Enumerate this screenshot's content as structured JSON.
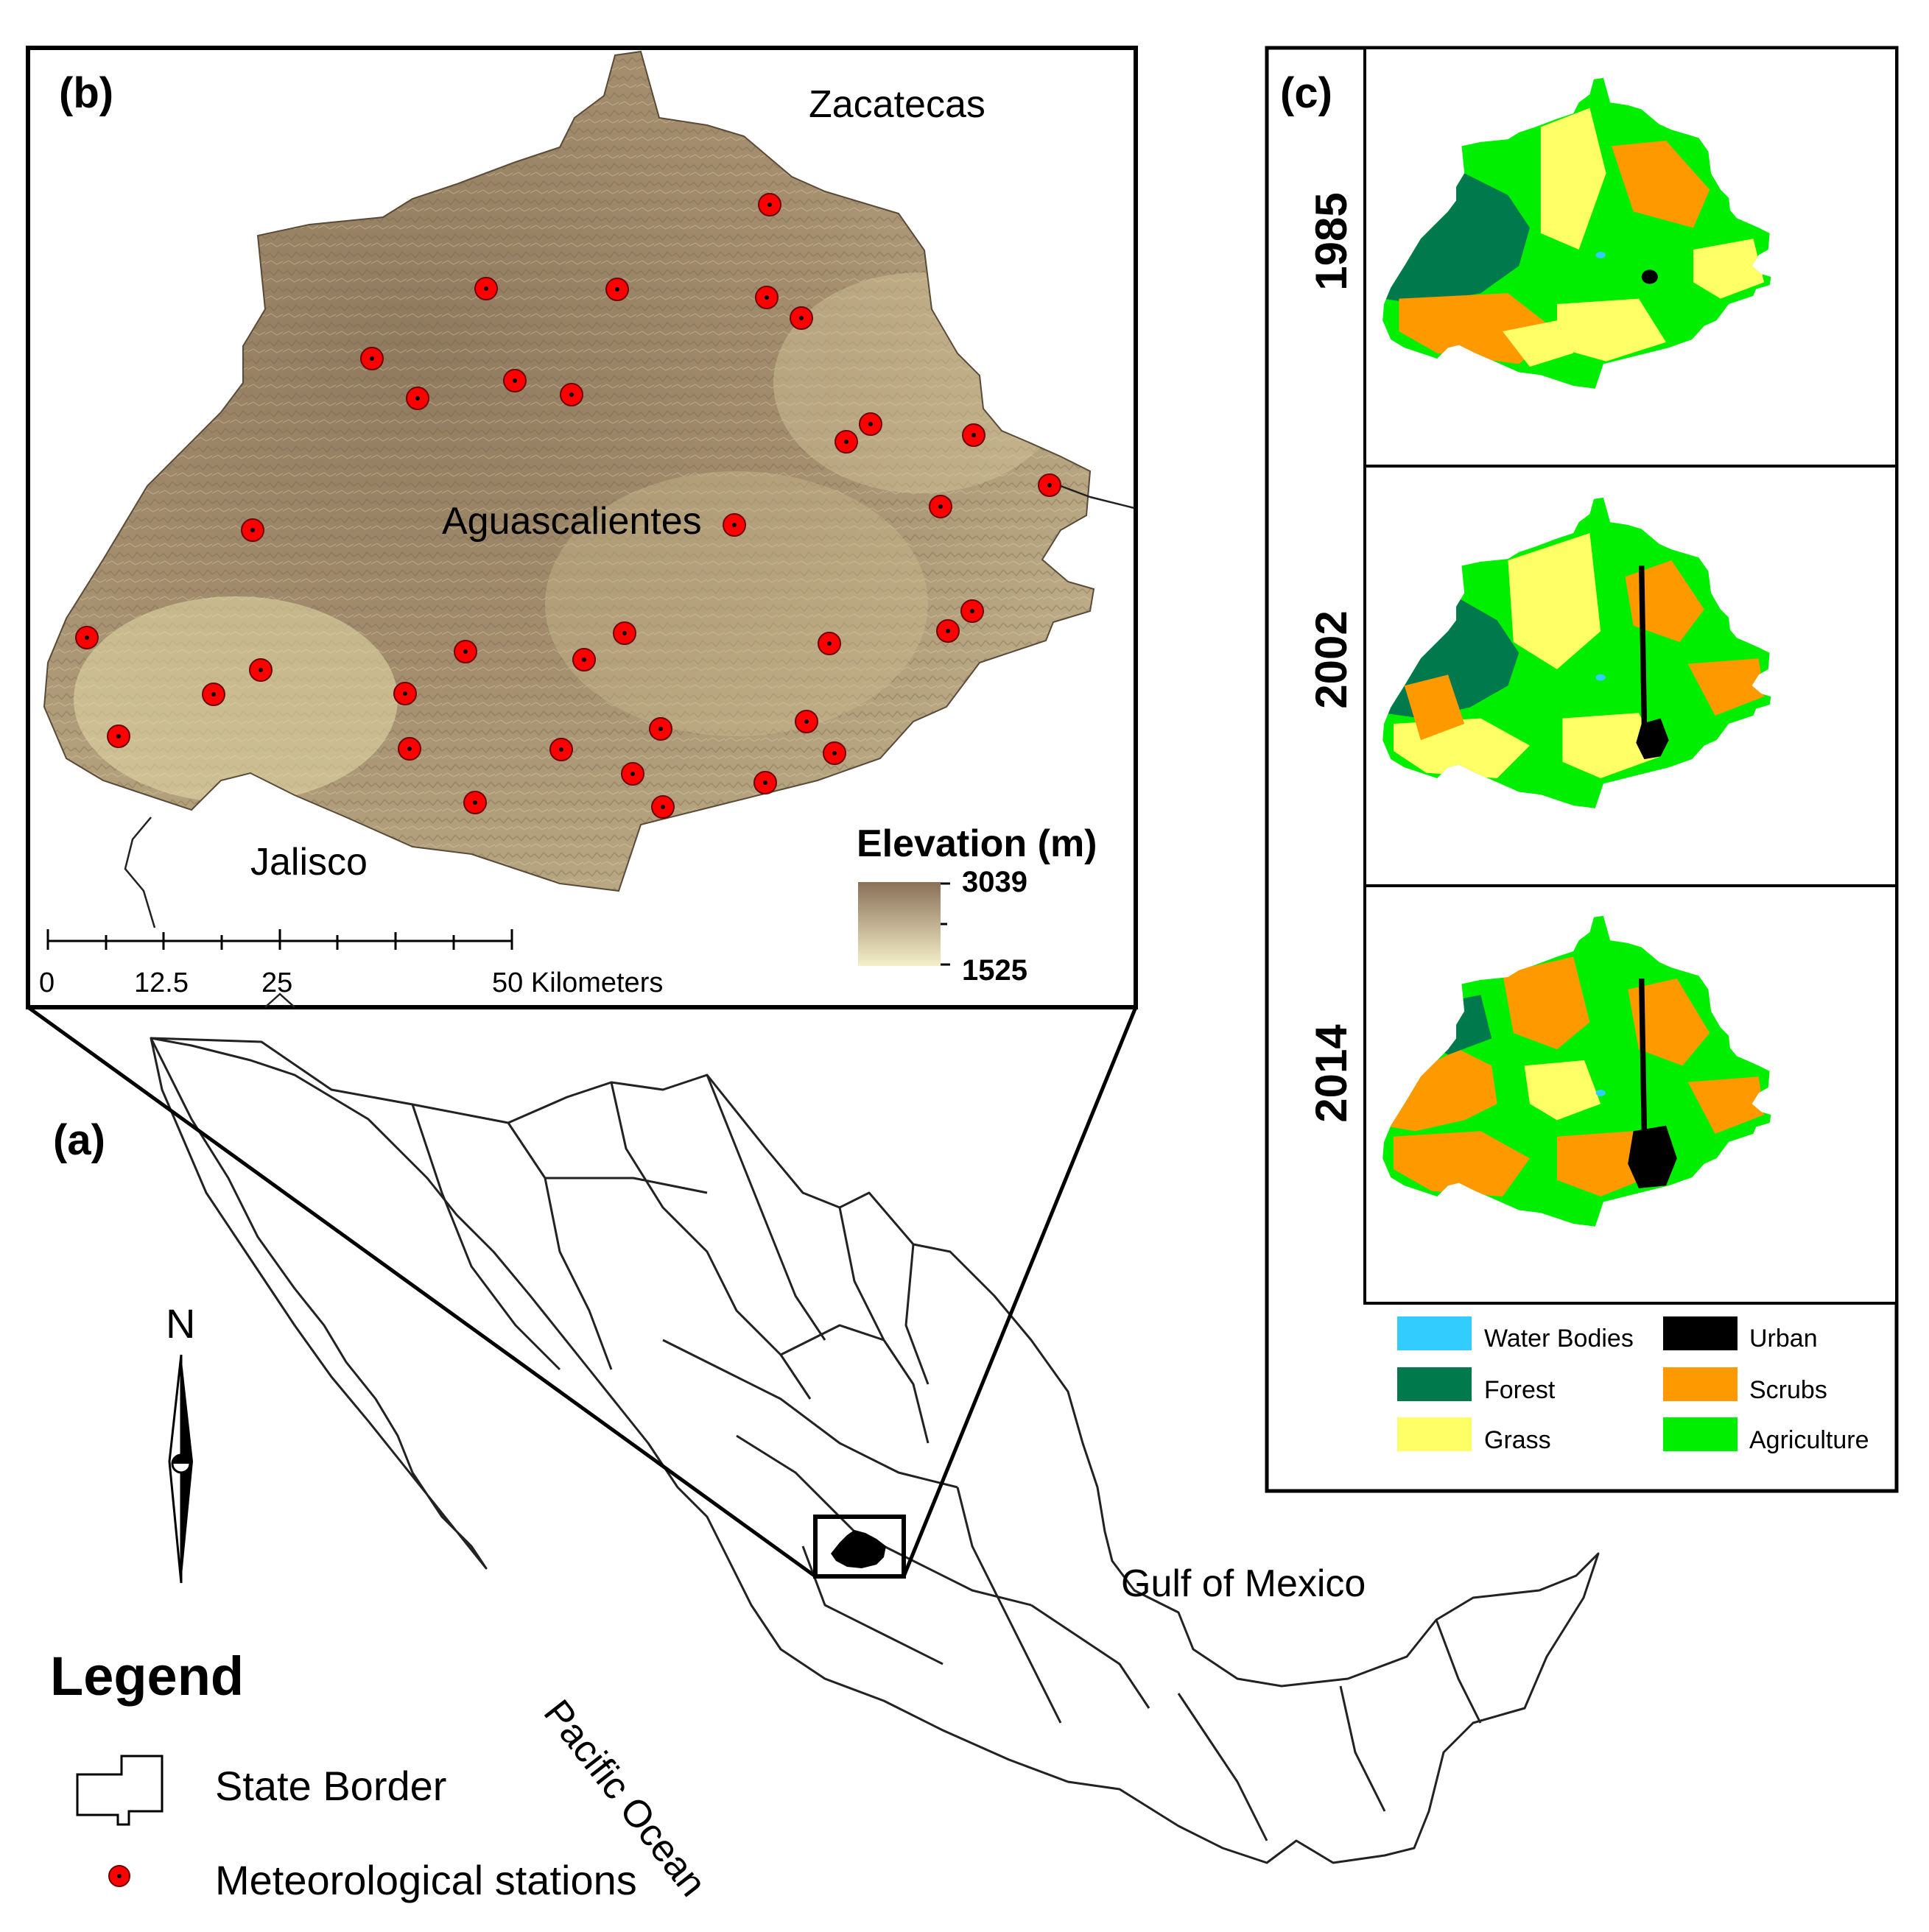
{
  "panels": {
    "a": {
      "label": "(a)"
    },
    "b": {
      "label": "(b)"
    },
    "c": {
      "label": "(c)"
    }
  },
  "places": {
    "zacatecas": "Zacatecas",
    "aguascalientes": "Aguascalientes",
    "jalisco": "Jalisco",
    "gulf": "Gulf of Mexico",
    "pacific": "Pacific Ocean"
  },
  "north_arrow": "N",
  "scale_bar": {
    "ticks": [
      "0",
      "12.5",
      "25",
      "50"
    ],
    "unit": "Kilometers"
  },
  "elevation": {
    "title": "Elevation (m)",
    "max": "3039",
    "min": "1525",
    "color_high": "#8a7058",
    "color_low": "#f4f0c8"
  },
  "land_cover": {
    "years": [
      "1985",
      "2002",
      "2014"
    ],
    "classes": [
      {
        "label": "Water Bodies",
        "color": "#33ccff"
      },
      {
        "label": "Urban",
        "color": "#000000"
      },
      {
        "label": "Forest",
        "color": "#007a4d"
      },
      {
        "label": "Scrubs",
        "color": "#ff9900"
      },
      {
        "label": "Grass",
        "color": "#ffff66"
      },
      {
        "label": "Agriculture",
        "color": "#00ee00"
      }
    ]
  },
  "station_color": "#ff0000",
  "legend": {
    "title": "Legend",
    "state_border": "State Border",
    "stations": "Meteorological stations"
  }
}
